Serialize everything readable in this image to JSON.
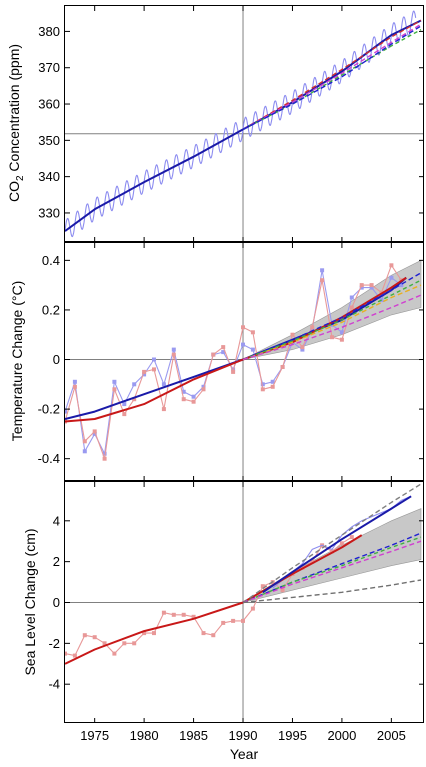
{
  "chart_data": [
    {
      "type": "line",
      "ylabel_prefix": "CO",
      "ylabel_subscript": "2",
      "ylabel_suffix": " Concentration (ppm)",
      "xlim": [
        1972,
        2008.3
      ],
      "ylim": [
        322,
        387
      ],
      "yticks": [
        330,
        340,
        350,
        360,
        370,
        380
      ],
      "ref_x": 1990,
      "ref_y": 351.8,
      "seasonal_amplitude": 3,
      "series": [
        {
          "key": "observed_monthly",
          "color": "#8c8cf0",
          "x": [
            1972,
            1975,
            1980,
            1985,
            1990,
            1995,
            2000,
            2005,
            2007.5
          ],
          "y": [
            325,
            331,
            338.5,
            345.5,
            353,
            360.5,
            369,
            379,
            383
          ]
        },
        {
          "key": "observed_trend",
          "color": "#1a1aa8",
          "x": [
            1972,
            1975,
            1980,
            1985,
            1990,
            1995,
            2000,
            2005,
            2008
          ],
          "y": [
            325,
            331,
            338.5,
            345.5,
            353,
            360.5,
            369,
            379,
            383
          ]
        },
        {
          "key": "projection_a",
          "color": "#d03030",
          "dash": "5,3",
          "x": [
            1990,
            1995,
            2000,
            2005,
            2008
          ],
          "y": [
            353,
            361,
            369.5,
            378.5,
            383
          ]
        },
        {
          "key": "projection_b",
          "color": "#d040d0",
          "dash": "5,3",
          "x": [
            1990,
            1995,
            2000,
            2005,
            2008
          ],
          "y": [
            353,
            360.5,
            368.5,
            377,
            382
          ]
        },
        {
          "key": "projection_c",
          "color": "#40b040",
          "dash": "4,3",
          "x": [
            1990,
            1995,
            2000,
            2005,
            2008
          ],
          "y": [
            353,
            360,
            368,
            376,
            380.5
          ]
        },
        {
          "key": "projection_d",
          "color": "#2020d0",
          "dash": "5,3",
          "x": [
            1990,
            1995,
            2000,
            2005,
            2008
          ],
          "y": [
            353,
            360,
            367.5,
            376.5,
            381.5
          ]
        }
      ]
    },
    {
      "type": "line",
      "ylabel": "Temperature Change (°C)",
      "xlim": [
        1972,
        2008.3
      ],
      "ylim": [
        -0.49,
        0.47
      ],
      "yticks": [
        -0.4,
        -0.2,
        0,
        0.2,
        0.4
      ],
      "yticklabels": [
        "-0.4",
        "-0.2",
        "0",
        "0.2",
        "0.4"
      ],
      "ref_x": 1990,
      "ref_y": 0,
      "band": {
        "color": "#c8c8c8",
        "x": [
          1990,
          1995,
          2000,
          2005,
          2008
        ],
        "upper": [
          0,
          0.1,
          0.21,
          0.34,
          0.4
        ],
        "lower": [
          0,
          0.04,
          0.1,
          0.18,
          0.21
        ]
      },
      "series": [
        {
          "key": "annual_a",
          "color": "#9a9af0",
          "markers": true,
          "x": [
            1972,
            1973,
            1974,
            1975,
            1976,
            1977,
            1978,
            1979,
            1980,
            1981,
            1982,
            1983,
            1984,
            1985,
            1986,
            1987,
            1988,
            1989,
            1990,
            1991,
            1992,
            1993,
            1994,
            1995,
            1996,
            1997,
            1998,
            1999,
            2000,
            2001,
            2002,
            2003,
            2004,
            2005,
            2006
          ],
          "y": [
            -0.21,
            -0.09,
            -0.37,
            -0.3,
            -0.38,
            -0.09,
            -0.18,
            -0.1,
            -0.06,
            0.0,
            -0.1,
            0.04,
            -0.13,
            -0.15,
            -0.11,
            0.02,
            0.03,
            -0.04,
            0.06,
            0.04,
            -0.1,
            -0.09,
            -0.03,
            0.07,
            0.04,
            0.12,
            0.36,
            0.14,
            0.11,
            0.25,
            0.29,
            0.29,
            0.24,
            0.33,
            0.3
          ]
        },
        {
          "key": "annual_b",
          "color": "#e89898",
          "markers": true,
          "x": [
            1972,
            1973,
            1974,
            1975,
            1976,
            1977,
            1978,
            1979,
            1980,
            1981,
            1982,
            1983,
            1984,
            1985,
            1986,
            1987,
            1988,
            1989,
            1990,
            1991,
            1992,
            1993,
            1994,
            1995,
            1996,
            1997,
            1998,
            1999,
            2000,
            2001,
            2002,
            2003,
            2004,
            2005,
            2006
          ],
          "y": [
            -0.25,
            -0.11,
            -0.33,
            -0.29,
            -0.4,
            -0.12,
            -0.22,
            -0.16,
            -0.05,
            -0.04,
            -0.2,
            0.02,
            -0.16,
            -0.17,
            -0.12,
            0.02,
            0.05,
            -0.05,
            0.13,
            0.11,
            -0.12,
            -0.11,
            -0.03,
            0.1,
            0.05,
            0.13,
            0.32,
            0.09,
            0.08,
            0.21,
            0.3,
            0.3,
            0.27,
            0.38,
            0.32
          ]
        },
        {
          "key": "smoothed_a",
          "color": "#1a1aa8",
          "x": [
            1972,
            1975,
            1980,
            1985,
            1990,
            1995,
            2000,
            2005,
            2006.5
          ],
          "y": [
            -0.24,
            -0.21,
            -0.14,
            -0.07,
            0.0,
            0.08,
            0.16,
            0.28,
            0.33
          ]
        },
        {
          "key": "smoothed_b",
          "color": "#c81818",
          "x": [
            1972,
            1975,
            1980,
            1985,
            1990,
            1995,
            2000,
            2005,
            2006.5
          ],
          "y": [
            -0.25,
            -0.24,
            -0.18,
            -0.08,
            0.0,
            0.07,
            0.17,
            0.29,
            0.33
          ]
        },
        {
          "key": "projection_a",
          "color": "#2020d0",
          "dash": "5,3",
          "x": [
            1990,
            1995,
            2000,
            2005,
            2008
          ],
          "y": [
            0,
            0.08,
            0.17,
            0.28,
            0.35
          ]
        },
        {
          "key": "projection_b",
          "color": "#e8b020",
          "dash": "5,3",
          "x": [
            1990,
            1995,
            2000,
            2005,
            2008
          ],
          "y": [
            0,
            0.07,
            0.15,
            0.25,
            0.3
          ]
        },
        {
          "key": "projection_c",
          "color": "#40b040",
          "dash": "4,3",
          "x": [
            1990,
            1995,
            2000,
            2005,
            2008
          ],
          "y": [
            0,
            0.075,
            0.16,
            0.26,
            0.32
          ]
        },
        {
          "key": "projection_d",
          "color": "#d040d0",
          "dash": "5,3",
          "x": [
            1990,
            1995,
            2000,
            2005,
            2008
          ],
          "y": [
            0,
            0.06,
            0.13,
            0.21,
            0.26
          ]
        }
      ]
    },
    {
      "type": "line",
      "ylabel": "Sea Level Change (cm)",
      "xlabel": "Year",
      "xlim": [
        1972,
        2008.3
      ],
      "ylim": [
        -5.9,
        5.9
      ],
      "yticks": [
        -4,
        -2,
        0,
        2,
        4
      ],
      "xticks": [
        1975,
        1980,
        1985,
        1990,
        1995,
        2000,
        2005
      ],
      "ref_x": 1990,
      "ref_y": 0,
      "band": {
        "color": "#c8c8c8",
        "x": [
          1990,
          1995,
          2000,
          2005,
          2008
        ],
        "upper": [
          0,
          1.5,
          2.8,
          4.0,
          4.6
        ],
        "lower": [
          0,
          0.6,
          1.2,
          1.8,
          2.1
        ]
      },
      "series": [
        {
          "key": "tide_gauge",
          "color": "#e89898",
          "markers": true,
          "x": [
            1972,
            1973,
            1974,
            1975,
            1976,
            1977,
            1978,
            1979,
            1980,
            1981,
            1982,
            1983,
            1984,
            1985,
            1986,
            1987,
            1988,
            1989,
            1990,
            1991,
            1992,
            1993,
            1994,
            1995,
            1996,
            1997,
            1998,
            1999,
            2000,
            2001
          ],
          "y": [
            -2.5,
            -2.6,
            -1.6,
            -1.7,
            -2.0,
            -2.5,
            -2.0,
            -2.0,
            -1.5,
            -1.5,
            -0.5,
            -0.6,
            -0.6,
            -0.7,
            -1.5,
            -1.6,
            -1.0,
            -0.9,
            -0.9,
            -0.3,
            0.8,
            1.0,
            0.6,
            1.4,
            1.7,
            2.0,
            2.8,
            2.5,
            2.9,
            3.2
          ]
        },
        {
          "key": "satellite",
          "color": "#8c8cf0",
          "x": [
            1993,
            1994,
            1995,
            1996,
            1997,
            1998,
            1999,
            2000,
            2001,
            2002,
            2003,
            2004,
            2005,
            2006,
            2007
          ],
          "y": [
            0.7,
            1.1,
            1.5,
            1.9,
            2.6,
            2.8,
            2.6,
            3.3,
            3.7,
            4.0,
            4.2,
            4.4,
            4.6,
            5.0,
            5.2
          ]
        },
        {
          "key": "smoothed_gauge",
          "color": "#c81818",
          "x": [
            1972,
            1975,
            1980,
            1985,
            1990,
            1995,
            2000,
            2002
          ],
          "y": [
            -3.0,
            -2.3,
            -1.4,
            -0.8,
            0.0,
            1.4,
            2.7,
            3.3
          ]
        },
        {
          "key": "satellite_trend",
          "color": "#1a1aa8",
          "x": [
            1992,
            1995,
            2000,
            2005,
            2007
          ],
          "y": [
            0.5,
            1.5,
            3.1,
            4.6,
            5.2
          ]
        },
        {
          "key": "projection_upper",
          "color": "#808080",
          "dash": "5,3",
          "x": [
            1990,
            1995,
            2000,
            2005,
            2008
          ],
          "y": [
            0,
            1.7,
            3.3,
            4.9,
            5.8
          ]
        },
        {
          "key": "projection_mid",
          "color": "#2020d0",
          "dash": "5,3",
          "x": [
            1990,
            1995,
            2000,
            2005,
            2008
          ],
          "y": [
            0,
            1.0,
            1.9,
            2.8,
            3.4
          ]
        },
        {
          "key": "projection_green",
          "color": "#40b040",
          "dash": "4,3",
          "x": [
            1990,
            1995,
            2000,
            2005,
            2008
          ],
          "y": [
            0,
            1.0,
            1.8,
            2.7,
            3.2
          ]
        },
        {
          "key": "projection_magenta",
          "color": "#d040d0",
          "dash": "5,3",
          "x": [
            1990,
            1995,
            2000,
            2005,
            2008
          ],
          "y": [
            0,
            0.9,
            1.7,
            2.5,
            3.0
          ]
        },
        {
          "key": "projection_lower",
          "color": "#707070",
          "dash": "5,3",
          "x": [
            1990,
            1995,
            2000,
            2005,
            2008
          ],
          "y": [
            0,
            0.25,
            0.5,
            0.85,
            1.1
          ]
        }
      ]
    }
  ]
}
